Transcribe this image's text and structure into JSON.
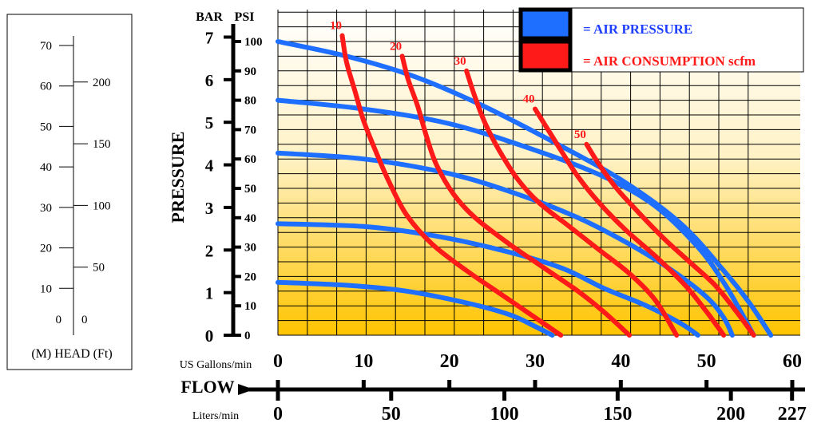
{
  "chart_data": {
    "type": "line",
    "title": "",
    "xlabel": "FLOW",
    "ylabel": "PRESSURE",
    "grid": true,
    "legend_position": "top-right",
    "x_units_top": "US Gallons/min",
    "x_units_bottom": "Liters/min",
    "x_ticks_gpm": [
      "0",
      "10",
      "20",
      "30",
      "40",
      "50",
      "60"
    ],
    "x_ticks_lpm": [
      "0",
      "50",
      "100",
      "150",
      "200",
      "227"
    ],
    "xlim_gpm": [
      0,
      60
    ],
    "y_units_left": "BAR",
    "y_units_right": "PSI",
    "y_ticks_bar": [
      "0",
      "1",
      "2",
      "3",
      "4",
      "5",
      "6",
      "7"
    ],
    "y_ticks_psi": [
      "0",
      "10",
      "20",
      "30",
      "40",
      "50",
      "60",
      "70",
      "80",
      "90",
      "100"
    ],
    "ylim_psi": [
      0,
      100
    ],
    "head_scale": {
      "label": "(M) HEAD (Ft)",
      "meters_ticks": [
        "70",
        "60",
        "50",
        "40",
        "30",
        "20",
        "10",
        "0"
      ],
      "feet_ticks": [
        "200",
        "150",
        "100",
        "50",
        "0"
      ]
    },
    "legend": {
      "air_pressure_label": "= AIR PRESSURE",
      "air_consumption_label": "= AIR CONSUMPTION scfm",
      "air_pressure_color": "#1e6fff",
      "air_consumption_color": "#ff1a1a"
    },
    "air_pressure_series": [
      {
        "points": [
          [
            0,
            100
          ],
          [
            8,
            95
          ],
          [
            16,
            88
          ],
          [
            24,
            78
          ],
          [
            32,
            66
          ],
          [
            40,
            53
          ],
          [
            47,
            38
          ],
          [
            52,
            22
          ],
          [
            55,
            11
          ],
          [
            57.5,
            0
          ]
        ]
      },
      {
        "points": [
          [
            0,
            80
          ],
          [
            10,
            77
          ],
          [
            20,
            72
          ],
          [
            30,
            63
          ],
          [
            38,
            54
          ],
          [
            44,
            44
          ],
          [
            49,
            30
          ],
          [
            52,
            18
          ],
          [
            54,
            8
          ],
          [
            55.5,
            0
          ]
        ]
      },
      {
        "points": [
          [
            0,
            62
          ],
          [
            10,
            60
          ],
          [
            20,
            55
          ],
          [
            28,
            48
          ],
          [
            35,
            40
          ],
          [
            41,
            31
          ],
          [
            46,
            22
          ],
          [
            50,
            13
          ],
          [
            52,
            6
          ],
          [
            53,
            0
          ]
        ]
      },
      {
        "points": [
          [
            0,
            38
          ],
          [
            10,
            37
          ],
          [
            18,
            34
          ],
          [
            26,
            29
          ],
          [
            33,
            23
          ],
          [
            38,
            16
          ],
          [
            43,
            10
          ],
          [
            47,
            4
          ],
          [
            49,
            0
          ]
        ]
      },
      {
        "points": [
          [
            0,
            18
          ],
          [
            8,
            17
          ],
          [
            15,
            15
          ],
          [
            22,
            11
          ],
          [
            27,
            7
          ],
          [
            30,
            3
          ],
          [
            32,
            0
          ]
        ]
      }
    ],
    "air_consumption_series": [
      {
        "label": "10",
        "points": [
          [
            7.5,
            102
          ],
          [
            8,
            93
          ],
          [
            9,
            83
          ],
          [
            10,
            73
          ],
          [
            11.5,
            62
          ],
          [
            13,
            52
          ],
          [
            15,
            41
          ],
          [
            18,
            31
          ],
          [
            22,
            22
          ],
          [
            26,
            14
          ],
          [
            30,
            6
          ],
          [
            33,
            0
          ]
        ]
      },
      {
        "label": "20",
        "points": [
          [
            14.5,
            95
          ],
          [
            15.2,
            87
          ],
          [
            16.3,
            78
          ],
          [
            17.3,
            68
          ],
          [
            18.5,
            58
          ],
          [
            20.5,
            48
          ],
          [
            23,
            40
          ],
          [
            27,
            31
          ],
          [
            31,
            23
          ],
          [
            35,
            15
          ],
          [
            38,
            8
          ],
          [
            41,
            0
          ]
        ]
      },
      {
        "label": "30",
        "points": [
          [
            22,
            90
          ],
          [
            23,
            81
          ],
          [
            24.2,
            72
          ],
          [
            25.8,
            63
          ],
          [
            28,
            53
          ],
          [
            30.5,
            45
          ],
          [
            34,
            37
          ],
          [
            37.5,
            29
          ],
          [
            41,
            21
          ],
          [
            44,
            12
          ],
          [
            46.5,
            0
          ]
        ]
      },
      {
        "label": "40",
        "points": [
          [
            30,
            77
          ],
          [
            31.5,
            70
          ],
          [
            33,
            63
          ],
          [
            35,
            54
          ],
          [
            37.5,
            45
          ],
          [
            40.5,
            36
          ],
          [
            44,
            27
          ],
          [
            47.5,
            17
          ],
          [
            50,
            8
          ],
          [
            52,
            0
          ]
        ]
      },
      {
        "label": "50",
        "points": [
          [
            36,
            65
          ],
          [
            37.5,
            58
          ],
          [
            39.5,
            50
          ],
          [
            42,
            42
          ],
          [
            45,
            33
          ],
          [
            48,
            25
          ],
          [
            51,
            17
          ],
          [
            53.5,
            8
          ],
          [
            55.5,
            0
          ]
        ]
      }
    ]
  }
}
